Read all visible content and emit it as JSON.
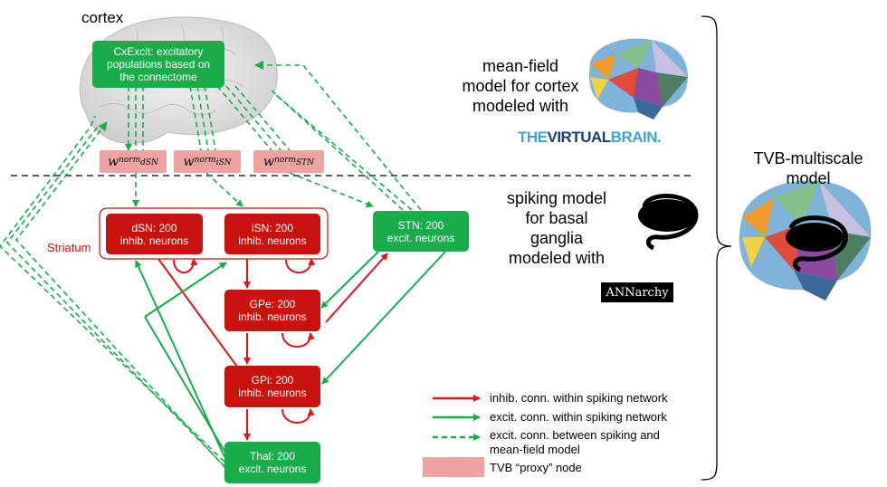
{
  "labels": {
    "cortex": "cortex",
    "striatum": "Striatum",
    "tvb_multiscale": [
      "TVB-multiscale",
      "model"
    ],
    "mean_field": [
      "mean-field",
      "model for cortex",
      "modeled with"
    ],
    "spiking": [
      "spiking model",
      "for basal",
      "ganglia",
      "modeled with"
    ],
    "tvb_logo": {
      "the": "THE",
      "virtual": "VIRTUAL",
      "brain": "BRAIN."
    },
    "annarchy": "ANNarchy"
  },
  "nodes": {
    "cxexcit": [
      "CxExcit: excitatory",
      "populations based on",
      "the connectome"
    ],
    "dsn": [
      "dSN: 200",
      "inhib. neurons"
    ],
    "isn": [
      "iSN: 200",
      "inhib. neurons"
    ],
    "stn": [
      "STN: 200",
      "excit. neurons"
    ],
    "gpe": [
      "GPe: 200",
      "inhib. neurons"
    ],
    "gpi": [
      "GPi: 200",
      "inhib. neurons"
    ],
    "thal": [
      "Thal: 200",
      "excit. neurons"
    ]
  },
  "proxies": {
    "dsn": {
      "base": "w",
      "sub1": "norm",
      "sub2": "dSN"
    },
    "isn": {
      "base": "w",
      "sub1": "norm",
      "sub2": "iSN"
    },
    "stn": {
      "base": "w",
      "sub1": "norm",
      "sub2": "STN"
    }
  },
  "legend": {
    "inhib": "inhib. conn. within spiking network",
    "excit": "excit. conn. within spiking network",
    "between": [
      "excit. conn. between spiking and",
      "mean-field model"
    ],
    "proxy": "TVB “proxy” node"
  },
  "colors": {
    "green": "#1aab4b",
    "red": "#c8120d",
    "proxy": "#eea3a3",
    "tvb_dark": "#1f3f6e",
    "tvb_light": "#3ea3d6"
  }
}
